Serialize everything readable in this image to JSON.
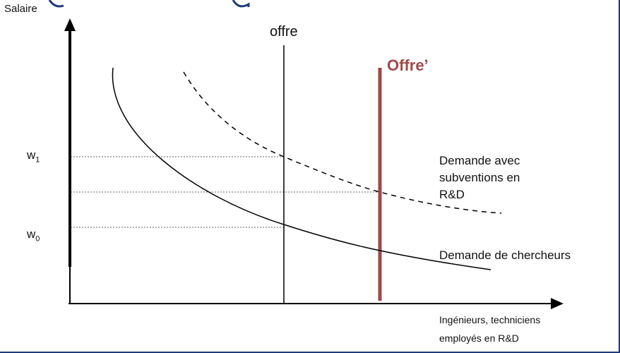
{
  "axes": {
    "y_label": "Salaire",
    "x_label_line1": "Ingénieurs, techniciens",
    "x_label_line2": "employés en R&D"
  },
  "ticks": {
    "w1": {
      "base": "w",
      "sub": "1"
    },
    "w0": {
      "base": "w",
      "sub": "0"
    }
  },
  "curves": {
    "offre": "offre",
    "offre_prime": "Offre’",
    "demande_sub_line1": "Demande avec",
    "demande_sub_line2": "subventions en",
    "demande_sub_line3": "R&D",
    "demande": "Demande de chercheurs"
  },
  "colors": {
    "offre_prime": "#a0484a",
    "axis": "#000000",
    "title_fragment": "#1f3a7a",
    "frame": "#1f3a7a"
  }
}
